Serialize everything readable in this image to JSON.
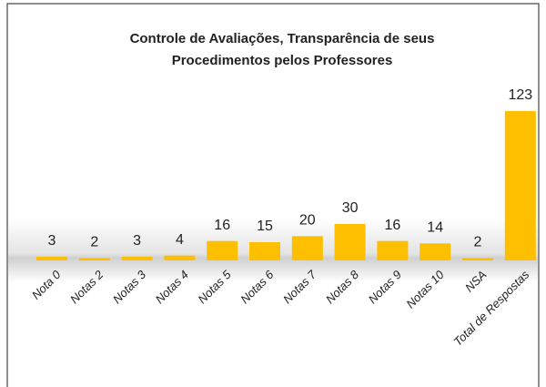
{
  "chart_data": {
    "type": "bar",
    "title_lines": [
      "Controle de Avaliações, Transparência de seus",
      "Procedimentos pelos Professores"
    ],
    "categories": [
      "Nota 0",
      "Notas 2",
      "Notas 3",
      "Notas 4",
      "Notas 5",
      "Notas 6",
      "Notas 7",
      "Notas 8",
      "Notas 9",
      "Notas 10",
      "NSA",
      "Total de Respostas"
    ],
    "values": [
      3,
      2,
      3,
      4,
      16,
      15,
      20,
      30,
      16,
      14,
      2,
      123
    ],
    "color": "#fdbf00"
  }
}
